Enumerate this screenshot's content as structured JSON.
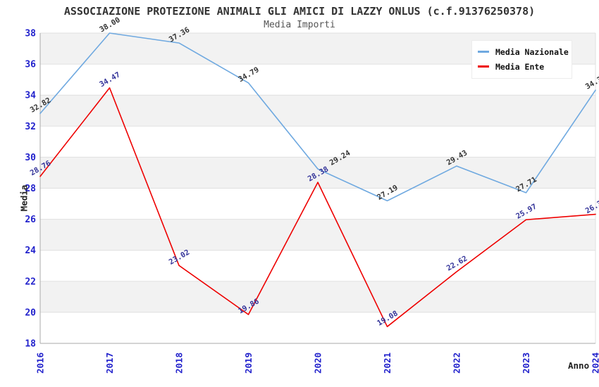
{
  "chart_data": {
    "type": "line",
    "title": "ASSOCIAZIONE PROTEZIONE ANIMALI GLI AMICI DI LAZZY ONLUS (c.f.91376250378)",
    "subtitle": "Media Importi",
    "xlabel": "Anno",
    "ylabel": "Media",
    "x_categories": [
      "2016",
      "2017",
      "2018",
      "2019",
      "2020",
      "2021",
      "2022",
      "2023",
      "2024"
    ],
    "ylim": [
      18,
      38
    ],
    "ytick_step": 2,
    "grid": "horizontal gridlines with alternating shaded bands",
    "legend_position": "top-right",
    "x_tick_rotation": 90,
    "data_label_rotation": -30,
    "series": [
      {
        "name": "Media Nazionale",
        "color": "#6fa9e0",
        "label_color": "#333333",
        "values": [
          32.82,
          38.0,
          37.36,
          34.79,
          29.24,
          27.19,
          29.43,
          27.71,
          34.32
        ]
      },
      {
        "name": "Media Ente",
        "color": "#ee0000",
        "label_color": "#333399",
        "values": [
          28.76,
          34.47,
          23.02,
          19.86,
          28.38,
          19.08,
          22.62,
          25.97,
          26.32
        ]
      }
    ],
    "label_offset_overrides": [
      {
        "series": 0,
        "index": 4,
        "dx": 33,
        "dy": -13
      }
    ]
  },
  "colors": {
    "tick_label": "#2222cc",
    "band_fill": "#f2f2f2",
    "gridline": "#e0e0e0",
    "axis_spine": "#aaaaaa",
    "title": "#333333",
    "subtitle": "#555555"
  }
}
